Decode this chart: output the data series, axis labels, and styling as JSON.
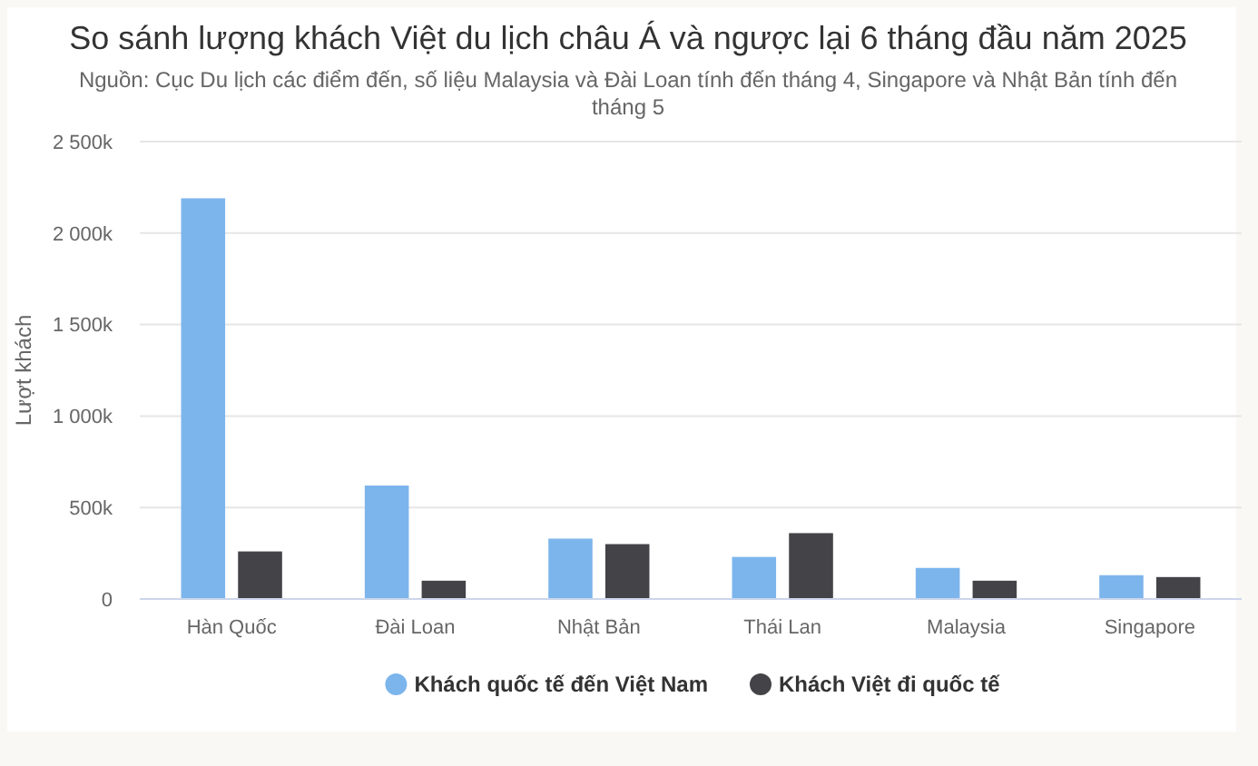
{
  "chart_data": {
    "type": "bar",
    "title": "So sánh lượng khách Việt du lịch châu Á và ngược lại 6 tháng đầu năm 2025",
    "subtitle": "Nguồn: Cục Du lịch các điểm đến, số liệu Malaysia và Đài Loan tính đến tháng 4, Singapore và Nhật Bản tính đến tháng 5",
    "ylabel": "Lượt khách",
    "categories": [
      "Hàn Quốc",
      "Đài Loan",
      "Nhật Bản",
      "Thái Lan",
      "Malaysia",
      "Singapore"
    ],
    "series": [
      {
        "name": "Khách quốc tế đến Việt Nam",
        "color": "#7cb5ec",
        "values": [
          2190000,
          620000,
          330000,
          230000,
          170000,
          130000
        ]
      },
      {
        "name": "Khách Việt đi quốc tế",
        "color": "#434348",
        "values": [
          260000,
          100000,
          300000,
          360000,
          100000,
          120000
        ]
      }
    ],
    "ylim": [
      0,
      2500000
    ],
    "yticks": [
      0,
      {
        "value": 500000,
        "label": "500k"
      },
      {
        "value": 1000000,
        "label": "1 000k"
      },
      {
        "value": 1500000,
        "label": "1 500k"
      },
      {
        "value": 2000000,
        "label": "2 000k"
      },
      {
        "value": 2500000,
        "label": "2 500k"
      }
    ],
    "grid": "y",
    "legend": "bottom"
  }
}
